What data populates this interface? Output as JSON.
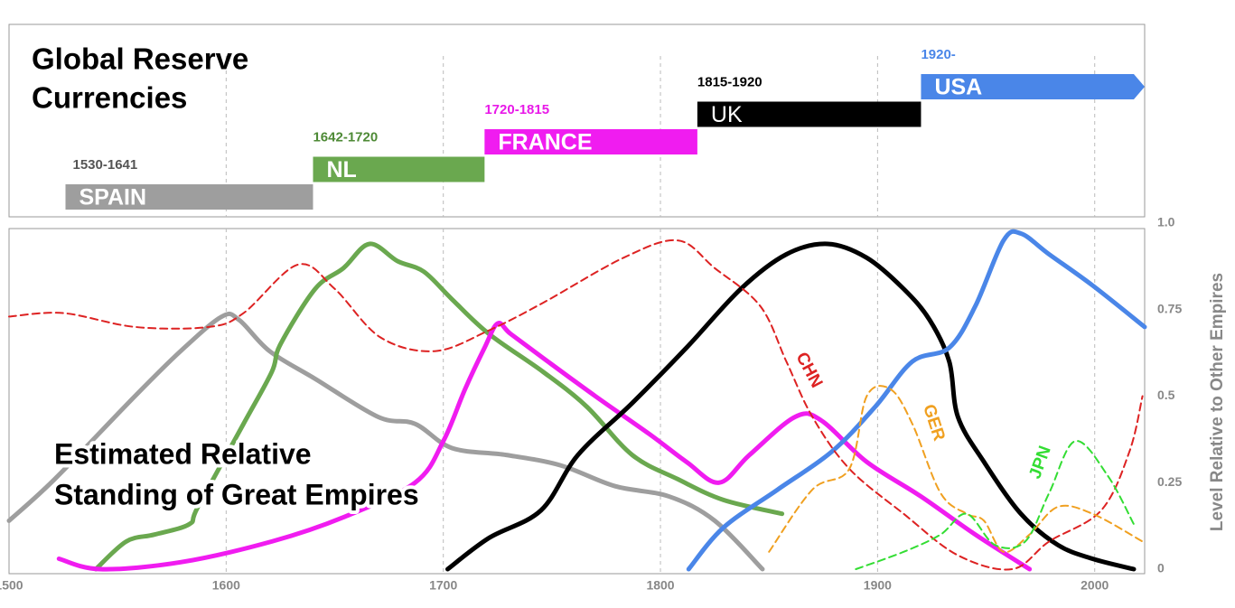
{
  "chart_data": [
    {
      "type": "timeline",
      "title_lines": [
        "Global Reserve",
        "Currencies"
      ],
      "xlim": [
        1500,
        2023
      ],
      "bars": [
        {
          "label": "SPAIN",
          "period": "1530-1641",
          "start": 1526,
          "end": 1640,
          "color": "#9e9e9e",
          "period_color": "#555555"
        },
        {
          "label": "NL",
          "period": "1642-1720",
          "start": 1640,
          "end": 1719,
          "color": "#6aa84f",
          "period_color": "#4e8a36"
        },
        {
          "label": "FRANCE",
          "period": "1720-1815",
          "start": 1719,
          "end": 1817,
          "color": "#f01cf0",
          "period_color": "#e81ae8"
        },
        {
          "label": "UK",
          "period": "1815-1920",
          "start": 1817,
          "end": 1920,
          "color": "#000000",
          "period_color": "#000000"
        },
        {
          "label": "USA",
          "period": "1920-",
          "start": 1920,
          "color": "#4a86e8",
          "period_color": "#4a86e8"
        }
      ]
    },
    {
      "type": "line",
      "title_lines": [
        "Estimated Relative",
        "Standing of Great Empires"
      ],
      "y_label": "Level Relative to Other Empires",
      "xlim": [
        1500,
        2023
      ],
      "xticks": [
        1500,
        1600,
        1700,
        1800,
        1900,
        2000
      ],
      "ylim": [
        0,
        1
      ],
      "yticks": [
        0,
        0.25,
        0.5,
        0.75,
        {
          "value": 1,
          "label": "1.0"
        }
      ],
      "grid": true,
      "series": [
        {
          "color": "#9e9e9e",
          "dashed": false,
          "x": [
            1500,
            1521,
            1558,
            1579,
            1598,
            1606,
            1620,
            1641,
            1670,
            1687,
            1704,
            1729,
            1754,
            1779,
            1804,
            1825,
            1847
          ],
          "values": [
            0.14,
            0.26,
            0.5,
            0.63,
            0.73,
            0.72,
            0.63,
            0.55,
            0.44,
            0.42,
            0.35,
            0.33,
            0.3,
            0.24,
            0.21,
            0.14,
            0
          ]
        },
        {
          "color": "#6aa84f",
          "dashed": false,
          "x": [
            1540,
            1554,
            1567,
            1583,
            1587,
            1608,
            1621,
            1625,
            1641,
            1654,
            1666,
            1679,
            1691,
            1704,
            1721,
            1746,
            1766,
            1787,
            1808,
            1829,
            1856
          ],
          "values": [
            0,
            0.08,
            0.1,
            0.13,
            0.18,
            0.42,
            0.57,
            0.65,
            0.81,
            0.87,
            0.94,
            0.89,
            0.86,
            0.78,
            0.68,
            0.57,
            0.47,
            0.33,
            0.26,
            0.2,
            0.16
          ]
        },
        {
          "color": "#f01cf0",
          "dashed": false,
          "x": [
            1523,
            1542,
            1579,
            1621,
            1654,
            1687,
            1700,
            1710,
            1719,
            1725,
            1731,
            1746,
            1770,
            1795,
            1812,
            1827,
            1841,
            1862,
            1874,
            1895,
            1920,
            1945,
            1970
          ],
          "values": [
            0.03,
            0,
            0.02,
            0.08,
            0.15,
            0.25,
            0.37,
            0.52,
            0.64,
            0.71,
            0.68,
            0.61,
            0.5,
            0.39,
            0.31,
            0.25,
            0.33,
            0.44,
            0.43,
            0.31,
            0.21,
            0.1,
            0
          ]
        },
        {
          "color": "#000000",
          "dashed": false,
          "x": [
            1702,
            1721,
            1745,
            1762,
            1787,
            1812,
            1837,
            1858,
            1877,
            1895,
            1912,
            1924,
            1933,
            1937,
            1949,
            1966,
            1983,
            1999,
            2018
          ],
          "values": [
            0,
            0.09,
            0.17,
            0.33,
            0.48,
            0.64,
            0.81,
            0.91,
            0.94,
            0.9,
            0.81,
            0.72,
            0.6,
            0.44,
            0.31,
            0.16,
            0.07,
            0.03,
            0
          ]
        },
        {
          "color": "#4a86e8",
          "dashed": false,
          "x": [
            1813,
            1829,
            1854,
            1879,
            1899,
            1916,
            1933,
            1945,
            1958,
            1966,
            1979,
            1999,
            2023
          ],
          "values": [
            0,
            0.12,
            0.23,
            0.34,
            0.47,
            0.6,
            0.64,
            0.76,
            0.95,
            0.97,
            0.91,
            0.82,
            0.7
          ]
        },
        {
          "name": "CHN",
          "color": "#dd2222",
          "dashed": true,
          "x": [
            1500,
            1525,
            1558,
            1592,
            1608,
            1633,
            1650,
            1671,
            1696,
            1721,
            1746,
            1783,
            1808,
            1825,
            1846,
            1858,
            1870,
            1887,
            1912,
            1937,
            1962,
            1979,
            2003,
            2016,
            2022
          ],
          "values": [
            0.73,
            0.74,
            0.7,
            0.7,
            0.74,
            0.88,
            0.81,
            0.67,
            0.63,
            0.69,
            0.77,
            0.9,
            0.95,
            0.87,
            0.76,
            0.6,
            0.44,
            0.29,
            0.16,
            0.04,
            0,
            0.08,
            0.17,
            0.34,
            0.5
          ]
        },
        {
          "name": "GER",
          "color": "#f0a020",
          "dashed": true,
          "x": [
            1850,
            1870,
            1887,
            1895,
            1906,
            1916,
            1929,
            1941,
            1949,
            1958,
            1970,
            1983,
            1999,
            2022
          ],
          "values": [
            0.05,
            0.23,
            0.29,
            0.5,
            0.52,
            0.42,
            0.22,
            0.16,
            0.14,
            0.05,
            0.1,
            0.18,
            0.16,
            0.08
          ]
        },
        {
          "name": "JPN",
          "color": "#33dd33",
          "dashed": true,
          "x": [
            1890,
            1912,
            1929,
            1941,
            1954,
            1968,
            1979,
            1991,
            2006,
            2018
          ],
          "values": [
            0,
            0.05,
            0.1,
            0.16,
            0.07,
            0.08,
            0.22,
            0.37,
            0.27,
            0.13
          ]
        }
      ]
    }
  ]
}
